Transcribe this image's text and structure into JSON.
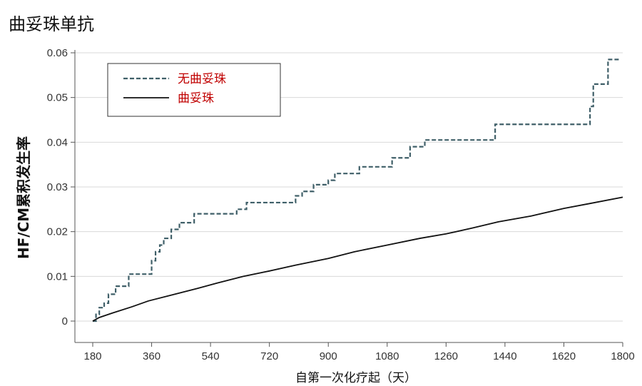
{
  "title": "曲妥珠单抗",
  "chart_data": {
    "type": "line",
    "xlabel": "自第一次化疗起（天）",
    "ylabel": "HF/CM累积发生率",
    "xlim": [
      180,
      1800
    ],
    "ylim": [
      0,
      0.06
    ],
    "xticks": [
      "180",
      "360",
      "540",
      "720",
      "900",
      "1080",
      "1260",
      "1440",
      "1620",
      "1800"
    ],
    "yticks": [
      "0",
      "0.01",
      "0.02",
      "0.03",
      "0.04",
      "0.05",
      "0.06"
    ],
    "grid": "horizontal",
    "legend_position": "top-left",
    "series": [
      {
        "name": "无曲妥珠",
        "style": "dashed-step",
        "color": "#3f5f68",
        "points": [
          [
            180,
            0
          ],
          [
            190,
            0.0015
          ],
          [
            200,
            0.003
          ],
          [
            215,
            0.004
          ],
          [
            228,
            0.006
          ],
          [
            250,
            0.0078
          ],
          [
            290,
            0.0105
          ],
          [
            355,
            0.0105
          ],
          [
            360,
            0.0135
          ],
          [
            372,
            0.0155
          ],
          [
            385,
            0.017
          ],
          [
            397,
            0.0185
          ],
          [
            420,
            0.0205
          ],
          [
            445,
            0.022
          ],
          [
            490,
            0.024
          ],
          [
            600,
            0.024
          ],
          [
            620,
            0.025
          ],
          [
            650,
            0.0265
          ],
          [
            790,
            0.0265
          ],
          [
            800,
            0.028
          ],
          [
            820,
            0.029
          ],
          [
            855,
            0.0305
          ],
          [
            900,
            0.0315
          ],
          [
            920,
            0.033
          ],
          [
            985,
            0.033
          ],
          [
            995,
            0.0345
          ],
          [
            1080,
            0.0345
          ],
          [
            1095,
            0.0365
          ],
          [
            1135,
            0.0365
          ],
          [
            1150,
            0.039
          ],
          [
            1180,
            0.039
          ],
          [
            1195,
            0.0405
          ],
          [
            1400,
            0.0405
          ],
          [
            1410,
            0.044
          ],
          [
            1690,
            0.044
          ],
          [
            1700,
            0.048
          ],
          [
            1710,
            0.053
          ],
          [
            1745,
            0.053
          ],
          [
            1755,
            0.0585
          ],
          [
            1790,
            0.0585
          ]
        ]
      },
      {
        "name": "曲妥珠",
        "style": "solid",
        "color": "#111111",
        "points": [
          [
            180,
            0
          ],
          [
            200,
            0.0008
          ],
          [
            240,
            0.0018
          ],
          [
            300,
            0.0032
          ],
          [
            350,
            0.0045
          ],
          [
            420,
            0.0058
          ],
          [
            500,
            0.0073
          ],
          [
            560,
            0.0085
          ],
          [
            640,
            0.01
          ],
          [
            720,
            0.0112
          ],
          [
            800,
            0.0125
          ],
          [
            900,
            0.014
          ],
          [
            980,
            0.0155
          ],
          [
            1080,
            0.017
          ],
          [
            1180,
            0.0185
          ],
          [
            1260,
            0.0195
          ],
          [
            1340,
            0.0208
          ],
          [
            1420,
            0.0222
          ],
          [
            1520,
            0.0235
          ],
          [
            1620,
            0.0252
          ],
          [
            1700,
            0.0263
          ],
          [
            1800,
            0.0277
          ]
        ]
      }
    ]
  }
}
